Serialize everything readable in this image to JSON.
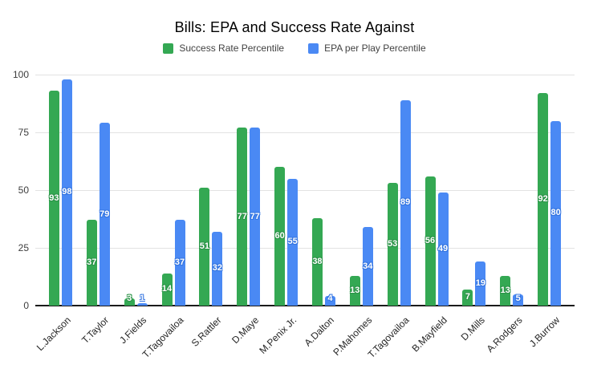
{
  "title": "Bills: EPA and Success Rate Against",
  "chart_data": {
    "type": "bar",
    "title": "Bills: EPA and Success Rate Against",
    "categories": [
      "L.Jackson",
      "T.Taylor",
      "J.Fields",
      "T.Tagovailoa",
      "S.Rattler",
      "D.Maye",
      "M.Penix Jr.",
      "A.Dalton",
      "P.Mahomes",
      "T.Tagovailoa",
      "B.Mayfield",
      "D.Mills",
      "A.Rodgers",
      "J.Burrow"
    ],
    "series": [
      {
        "name": "Success Rate Percentile",
        "color": "#34a853",
        "label_halo": "#2a9247",
        "values": [
          93,
          37,
          3,
          14,
          51,
          77,
          60,
          38,
          13,
          53,
          56,
          7,
          13,
          92
        ]
      },
      {
        "name": "EPA per Play Percentile",
        "color": "#4a89f4",
        "label_halo": "#3374e0",
        "values": [
          98,
          79,
          1,
          37,
          32,
          77,
          55,
          4,
          34,
          89,
          49,
          19,
          5,
          80
        ]
      }
    ],
    "xlabel": "",
    "ylabel": "",
    "ylim": [
      0,
      100
    ],
    "yticks": [
      0,
      25,
      50,
      75,
      100
    ],
    "grid": true,
    "legend_position": "top",
    "value_labels": "inside-center-white",
    "colors": {
      "background": "#ffffff",
      "gridline": "#e2e2e2",
      "axis_line": "#1b1b1b",
      "title_text": "#000000",
      "legend_text": "#424242",
      "tick_text": "#3d3d3d"
    }
  }
}
